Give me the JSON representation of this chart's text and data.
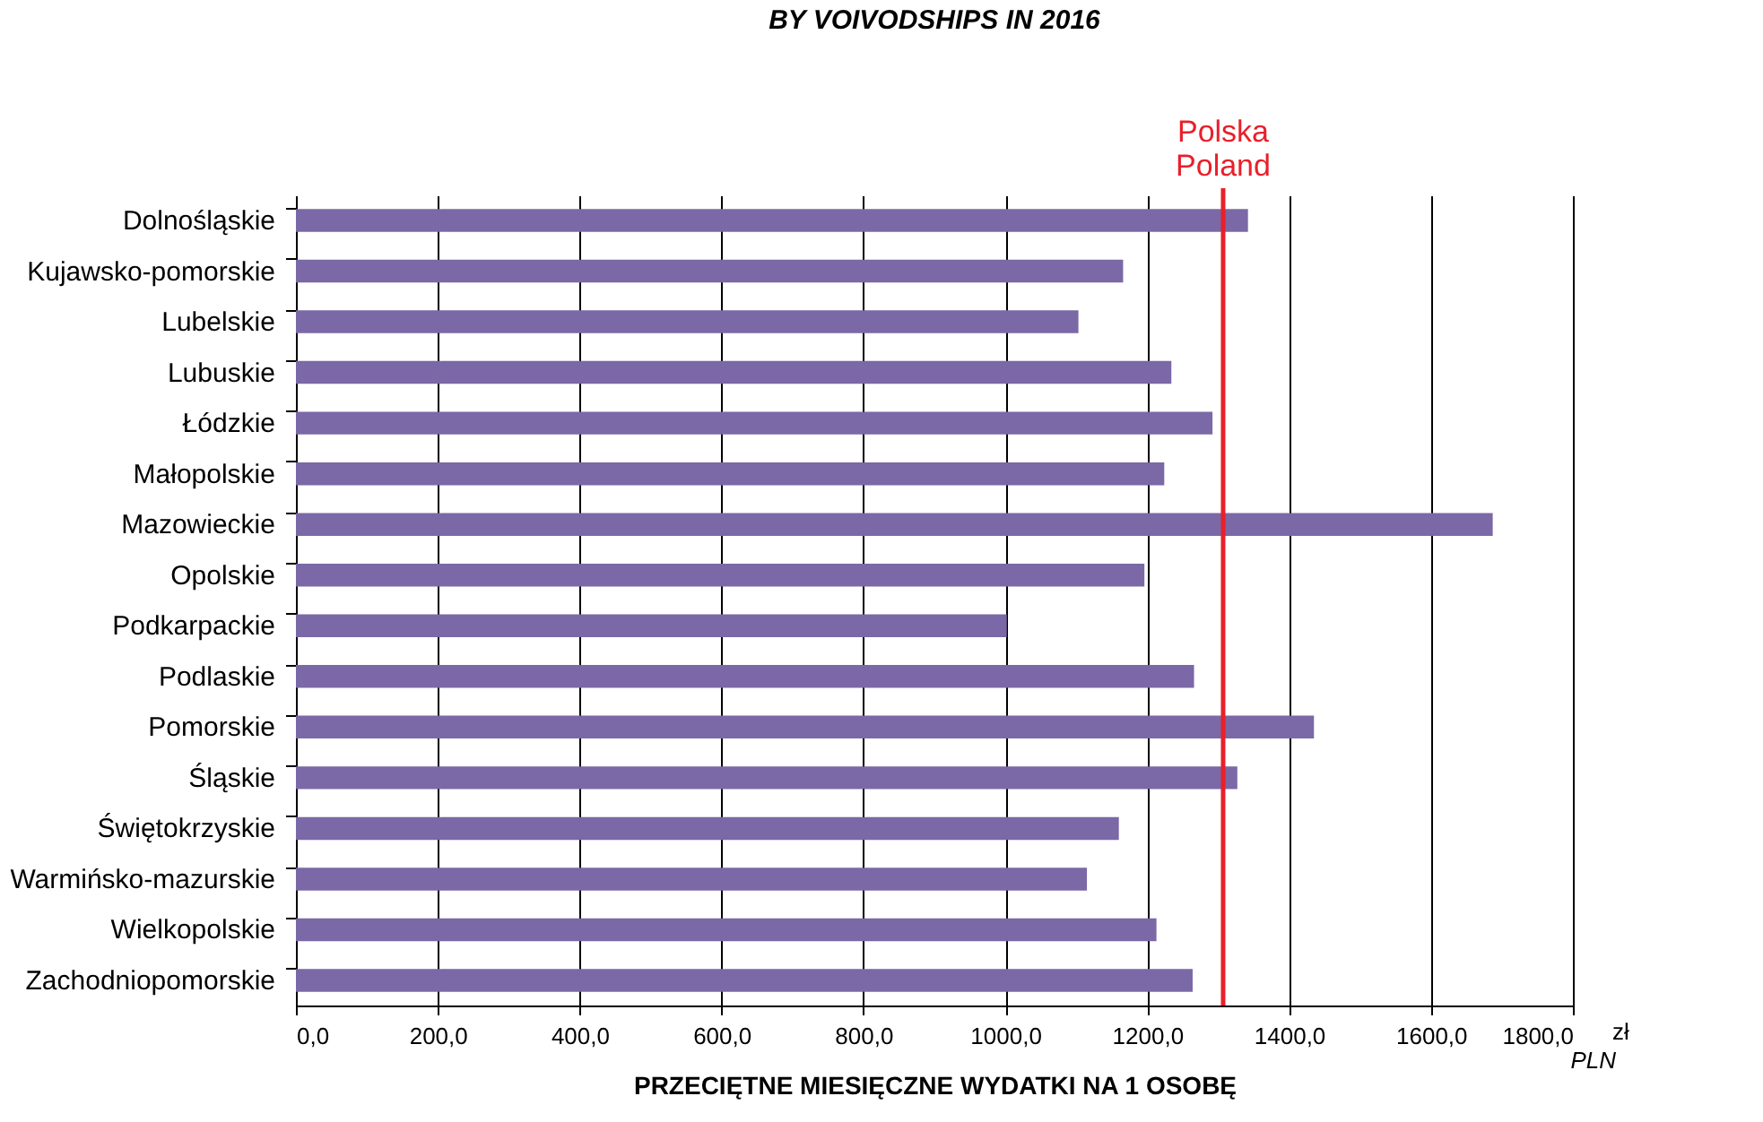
{
  "chart_data": {
    "type": "bar",
    "orientation": "horizontal",
    "title": "BY VOIVODSHIPS IN 2016",
    "xlabel": "PRZECIĘTNE MIESIĘCZNE WYDATKI NA 1 OSOBĘ",
    "categories": [
      "Dolnośląskie",
      "Kujawsko-pomorskie",
      "Lubelskie",
      "Lubuskie",
      "Łódzkie",
      "Małopolskie",
      "Mazowieckie",
      "Opolskie",
      "Podkarpackie",
      "Podlaskie",
      "Pomorskie",
      "Śląskie",
      "Świętokrzyskie",
      "Warmińsko-mazurskie",
      "Wielkopolskie",
      "Zachodniopomorskie"
    ],
    "values": [
      1342,
      1166,
      1103,
      1234,
      1292,
      1224,
      1687,
      1196,
      1002,
      1266,
      1435,
      1327,
      1160,
      1115,
      1213,
      1264
    ],
    "color": "#7b68a6",
    "xlim": [
      0,
      1800
    ],
    "xticks": [
      {
        "value": 0,
        "label": "0,0"
      },
      {
        "value": 200,
        "label": "200,0"
      },
      {
        "value": 400,
        "label": "400,0"
      },
      {
        "value": 600,
        "label": "600,0"
      },
      {
        "value": 800,
        "label": "800,0"
      },
      {
        "value": 1000,
        "label": "1000,0"
      },
      {
        "value": 1200,
        "label": "1200,0"
      },
      {
        "value": 1400,
        "label": "1400,0"
      },
      {
        "value": 1600,
        "label": "1600,0"
      },
      {
        "value": 1800,
        "label": "1800,0"
      }
    ],
    "ref_lines": [
      {
        "axis": "x",
        "value": 1307,
        "label": "Polska\nPoland",
        "color": "#e8202a"
      }
    ],
    "annotations": [
      "zł",
      "PLN"
    ],
    "grid": "x"
  }
}
